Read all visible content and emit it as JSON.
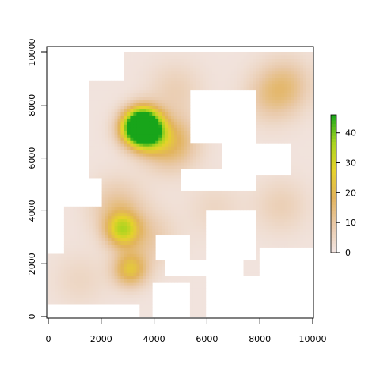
{
  "chart_data": {
    "type": "heatmap",
    "title": "",
    "xlabel": "",
    "ylabel": "",
    "xlim": [
      0,
      10000
    ],
    "ylim": [
      0,
      10000
    ],
    "x_ticks": [
      "0",
      "2000",
      "4000",
      "6000",
      "8000",
      "10000"
    ],
    "y_ticks": [
      "0",
      "2000",
      "4000",
      "6000",
      "8000",
      "10000"
    ],
    "legend": {
      "placement": "right",
      "range": [
        0,
        46
      ],
      "ticks": [
        "0",
        "10",
        "20",
        "30",
        "40"
      ],
      "colors": [
        "#f2e6e3",
        "#e9c9a9",
        "#e2b35c",
        "#e6d32b",
        "#a8d41f",
        "#18a51a"
      ]
    },
    "background_value": 1,
    "blobs": [
      {
        "x": 3300,
        "y": 7100,
        "peak": 30
      },
      {
        "x": 3600,
        "y": 7300,
        "peak": 46
      },
      {
        "x": 3800,
        "y": 6900,
        "peak": 24
      },
      {
        "x": 4600,
        "y": 6600,
        "peak": 18
      },
      {
        "x": 2800,
        "y": 3300,
        "peak": 28
      },
      {
        "x": 3100,
        "y": 1800,
        "peak": 22
      },
      {
        "x": 2600,
        "y": 4200,
        "peak": 10
      },
      {
        "x": 3800,
        "y": 3000,
        "peak": 8
      },
      {
        "x": 9000,
        "y": 8800,
        "peak": 10
      },
      {
        "x": 8400,
        "y": 8300,
        "peak": 8
      },
      {
        "x": 4800,
        "y": 8600,
        "peak": 6
      },
      {
        "x": 8800,
        "y": 4200,
        "peak": 6
      },
      {
        "x": 6300,
        "y": 4100,
        "peak": 4
      },
      {
        "x": 1200,
        "y": 1400,
        "peak": 4
      }
    ],
    "empty_regions": [
      {
        "x": [
          0,
          1500
        ],
        "y": [
          5200,
          10000
        ]
      },
      {
        "x": [
          1500,
          2900
        ],
        "y": [
          8900,
          10000
        ]
      },
      {
        "x": [
          8000,
          10000
        ],
        "y": [
          0,
          2600
        ]
      },
      {
        "x": [
          5300,
          7800
        ],
        "y": [
          6600,
          8600
        ]
      },
      {
        "x": [
          6600,
          9200
        ],
        "y": [
          5400,
          6600
        ]
      },
      {
        "x": [
          5000,
          7800
        ],
        "y": [
          4800,
          5600
        ]
      },
      {
        "x": [
          0,
          2000
        ],
        "y": [
          4200,
          5200
        ]
      },
      {
        "x": [
          0,
          600
        ],
        "y": [
          2400,
          4200
        ]
      },
      {
        "x": [
          5900,
          9400
        ],
        "y": [
          0,
          1500
        ]
      },
      {
        "x": [
          3900,
          5400
        ],
        "y": [
          0,
          1300
        ]
      },
      {
        "x": [
          0,
          3500
        ],
        "y": [
          0,
          500
        ]
      },
      {
        "x": [
          4100,
          5300
        ],
        "y": [
          2100,
          3100
        ]
      },
      {
        "x": [
          4400,
          7400
        ],
        "y": [
          1500,
          2200
        ]
      },
      {
        "x": [
          6000,
          7800
        ],
        "y": [
          2200,
          4000
        ]
      }
    ]
  }
}
